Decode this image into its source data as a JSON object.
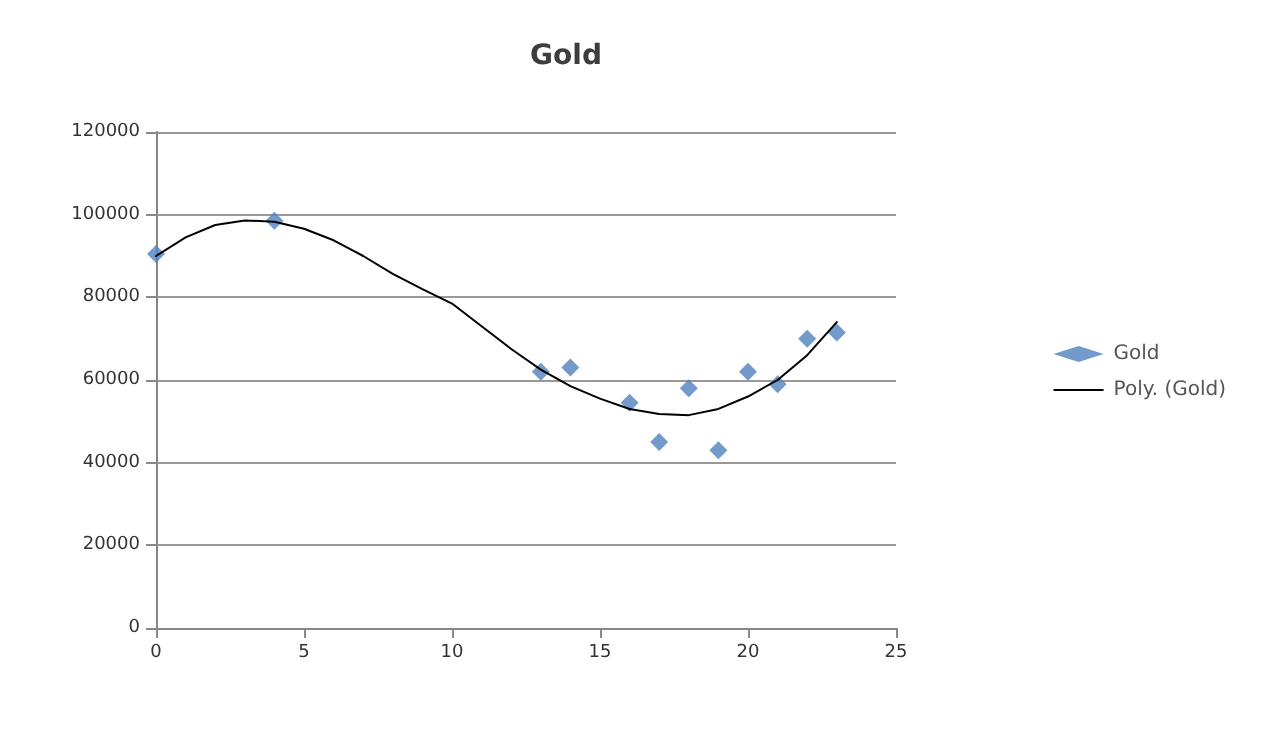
{
  "chart_data": {
    "type": "scatter",
    "title": "Gold",
    "legend": "right",
    "grid": "y",
    "marker": "diamond",
    "xlim": [
      0,
      25
    ],
    "xticks": [
      0,
      5,
      10,
      15,
      20,
      25
    ],
    "ylim": [
      0,
      120000
    ],
    "yticks": [
      0,
      20000,
      40000,
      60000,
      80000,
      100000,
      120000
    ],
    "series": [
      {
        "name": "Gold",
        "color": "#4f81bd",
        "x": [
          0,
          4,
          13,
          14,
          16,
          17,
          18,
          19,
          20,
          21,
          22,
          23
        ],
        "values": [
          90500,
          98500,
          62000,
          63000,
          54500,
          45000,
          58000,
          43000,
          62000,
          59000,
          70000,
          71500
        ]
      },
      {
        "name": "Poly. (Gold)",
        "type": "line",
        "color": "#000000",
        "line_style": "solid",
        "marker": "none",
        "x": [
          0,
          1,
          2,
          3,
          4,
          5,
          6,
          7,
          8,
          9,
          10,
          11,
          12,
          13,
          14,
          15,
          16,
          17,
          18,
          19,
          20,
          21,
          22,
          23
        ],
        "values": [
          90000,
          94500,
          97500,
          98600,
          98300,
          96600,
          93800,
          90000,
          85700,
          82000,
          78500,
          73000,
          67500,
          62500,
          58500,
          55500,
          53000,
          51800,
          51500,
          53000,
          56000,
          60000,
          66000,
          74000
        ]
      }
    ]
  }
}
